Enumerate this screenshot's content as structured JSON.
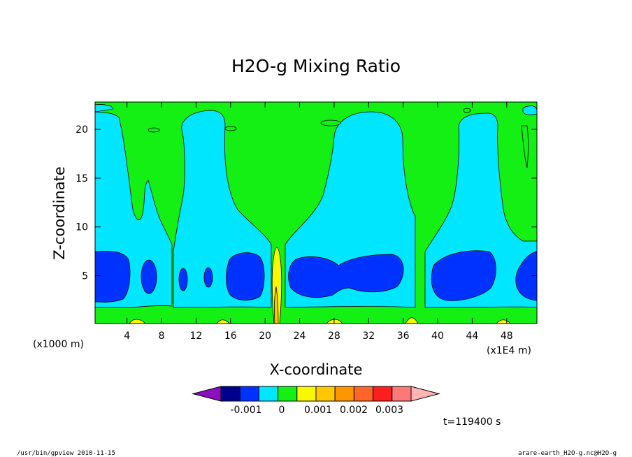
{
  "chart_data": {
    "type": "heatmap",
    "title": "H2O-g Mixing Ratio",
    "xlabel": "X-coordinate",
    "ylabel": "Z-coordinate",
    "x_unit_left": "(x1000 m)",
    "x_unit_right": "(x1E4 m)",
    "x_ticks": [
      "4",
      "8",
      "12",
      "16",
      "20",
      "24",
      "28",
      "32",
      "36",
      "40",
      "44",
      "48"
    ],
    "x_tick_values": [
      4,
      8,
      12,
      16,
      20,
      24,
      28,
      32,
      36,
      40,
      44,
      48
    ],
    "xlim": [
      0.3,
      51.5
    ],
    "y_ticks": [
      "5",
      "10",
      "15",
      "20"
    ],
    "y_tick_values": [
      5,
      10,
      15,
      20
    ],
    "ylim": [
      0.1,
      22.8
    ],
    "colorbar": {
      "colors": [
        "#8a0fc0",
        "#00008c",
        "#0032ff",
        "#00e6ff",
        "#14f014",
        "#f8f800",
        "#ffc800",
        "#ff9600",
        "#ff6428",
        "#ff1e1e",
        "#ff7878",
        "#ffb4b4"
      ],
      "labels": [
        "-0.001",
        "0",
        "0.001",
        "0.002",
        "0.003"
      ],
      "label_values": [
        -0.001,
        0,
        0.001,
        0.002,
        0.003
      ]
    },
    "time_label": "t=119400 s",
    "fill_colors": {
      "background": "#14f014",
      "light": "#00e6ff",
      "dark": "#0032ff",
      "yellow": "#f8f800",
      "orange": "#ffc800"
    }
  },
  "footer": {
    "left": "/usr/bin/gpview   2010-11-15",
    "right": "arare-earth_H2O-g.nc@H2O-g"
  }
}
